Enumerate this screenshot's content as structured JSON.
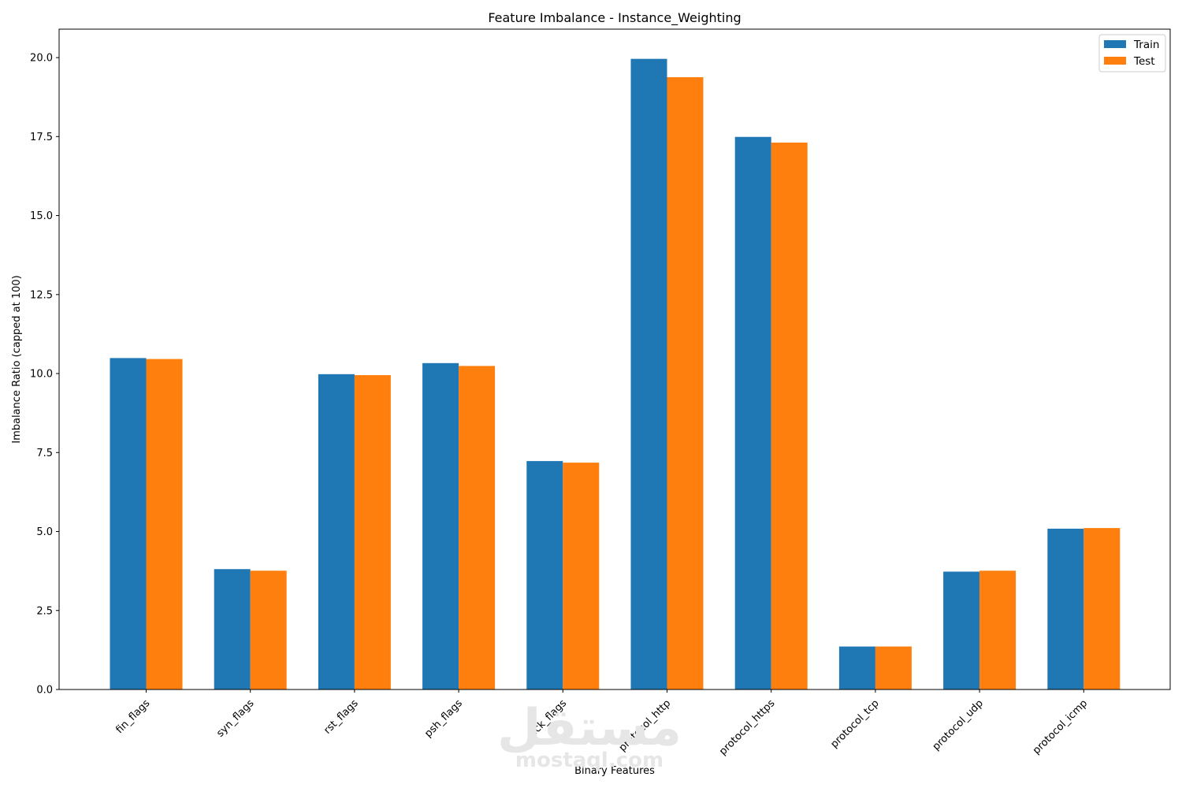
{
  "chart_data": {
    "type": "bar",
    "title": "Feature Imbalance - Instance_Weighting",
    "xlabel": "Binary Features",
    "ylabel": "Imbalance Ratio (capped at 100)",
    "categories": [
      "fin_flags",
      "syn_flags",
      "rst_flags",
      "psh_flags",
      "ack_flags",
      "protocol_http",
      "protocol_https",
      "protocol_tcp",
      "protocol_udp",
      "protocol_icmp"
    ],
    "series": [
      {
        "name": "Train",
        "color": "#1f77b4",
        "values": [
          10.49,
          3.81,
          9.98,
          10.33,
          7.23,
          19.96,
          17.49,
          1.36,
          3.73,
          5.09
        ]
      },
      {
        "name": "Test",
        "color": "#ff7f0e",
        "values": [
          10.46,
          3.76,
          9.95,
          10.24,
          7.18,
          19.38,
          17.31,
          1.36,
          3.76,
          5.11
        ]
      }
    ],
    "ylim": [
      0,
      20.9
    ],
    "yticks": [
      "0.0",
      "2.5",
      "5.0",
      "7.5",
      "10.0",
      "12.5",
      "15.0",
      "17.5",
      "20.0"
    ],
    "ytick_values": [
      0,
      2.5,
      5,
      7.5,
      10,
      12.5,
      15,
      17.5,
      20
    ],
    "grid": false,
    "legend_position": "top-right"
  },
  "watermark": {
    "arabic": "مستقل",
    "latin": "mostaql.com"
  }
}
